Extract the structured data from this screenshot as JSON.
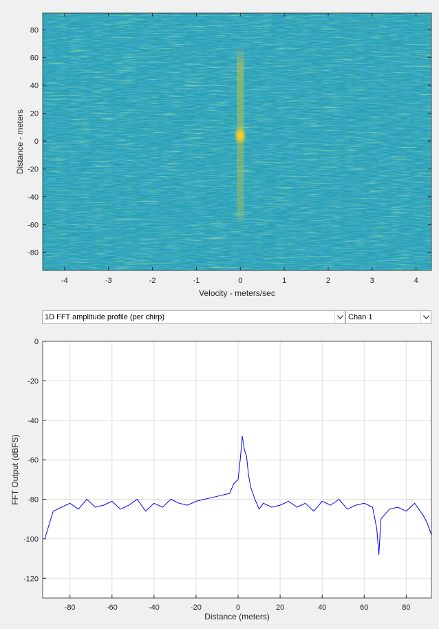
{
  "colors": {
    "line": "#0000ff",
    "axis": "#262626",
    "grid": "#dfdfdf",
    "plot_bg": "#ffffff"
  },
  "dropdowns": {
    "profile": {
      "selected": "1D FFT amplitude profile (per chirp)",
      "icon": "chevron-down-icon"
    },
    "channel": {
      "selected": "Chan 1",
      "icon": "chevron-down-icon"
    }
  },
  "chart_data": [
    {
      "type": "heatmap",
      "title": "",
      "xlabel": "Velocity - meters/sec",
      "ylabel": "Distance - meters",
      "xlim": [
        -4.5,
        4.35
      ],
      "ylim": [
        -93,
        92
      ],
      "xticks": [
        -4,
        -3,
        -2,
        -1,
        0,
        1,
        2,
        3,
        4
      ],
      "yticks": [
        -80,
        -60,
        -40,
        -20,
        0,
        20,
        40,
        60,
        80
      ],
      "colormap": "parula",
      "peak": {
        "x": 0.0,
        "y": 4
      },
      "ridge": {
        "x": 0.0,
        "y_range": [
          -62,
          68
        ]
      }
    },
    {
      "type": "line",
      "title": "",
      "xlabel": "Distance (meters)",
      "ylabel": "FFT Output (dBFS)",
      "xlim": [
        -93,
        92
      ],
      "ylim": [
        -130,
        0
      ],
      "xticks": [
        -80,
        -60,
        -40,
        -20,
        0,
        20,
        40,
        60,
        80
      ],
      "yticks": [
        0,
        -20,
        -40,
        -60,
        -80,
        -100,
        -120
      ],
      "grid": true,
      "series": [
        {
          "x": [
            -92,
            -88,
            -84,
            -80,
            -76,
            -72,
            -68,
            -64,
            -60,
            -56,
            -52,
            -48,
            -44,
            -40,
            -36,
            -32,
            -28,
            -24,
            -20,
            -16,
            -12,
            -8,
            -4,
            -2,
            0,
            1,
            2,
            3,
            4,
            5,
            6,
            8,
            10,
            12,
            16,
            20,
            24,
            28,
            32,
            36,
            40,
            44,
            48,
            52,
            56,
            60,
            64,
            66,
            67,
            68,
            72,
            76,
            80,
            84,
            88,
            90,
            92
          ],
          "values": [
            -100,
            -86,
            -84,
            -82,
            -85,
            -80,
            -84,
            -83,
            -81,
            -85,
            -83,
            -80,
            -86,
            -82,
            -84,
            -80,
            -82,
            -83,
            -81,
            -80,
            -79,
            -78,
            -77,
            -72,
            -70,
            -60,
            -48,
            -55,
            -58,
            -68,
            -74,
            -80,
            -85,
            -82,
            -84,
            -83,
            -81,
            -84,
            -82,
            -86,
            -81,
            -83,
            -80,
            -85,
            -83,
            -82,
            -84,
            -95,
            -108,
            -90,
            -85,
            -84,
            -86,
            -82,
            -88,
            -92,
            -98
          ]
        }
      ]
    }
  ]
}
